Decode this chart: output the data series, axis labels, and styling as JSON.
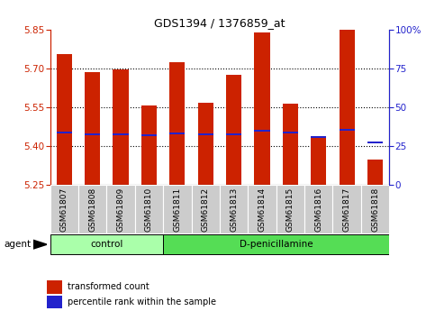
{
  "title": "GDS1394 / 1376859_at",
  "samples": [
    "GSM61807",
    "GSM61808",
    "GSM61809",
    "GSM61810",
    "GSM61811",
    "GSM61812",
    "GSM61813",
    "GSM61814",
    "GSM61815",
    "GSM61816",
    "GSM61817",
    "GSM61818"
  ],
  "bar_values": [
    5.755,
    5.685,
    5.695,
    5.558,
    5.725,
    5.568,
    5.675,
    5.838,
    5.565,
    5.435,
    5.85,
    5.348
  ],
  "blue_values": [
    5.453,
    5.445,
    5.447,
    5.443,
    5.448,
    5.445,
    5.447,
    5.46,
    5.452,
    5.435,
    5.463,
    5.415
  ],
  "bar_bottom": 5.25,
  "ylim_left": [
    5.25,
    5.85
  ],
  "ylim_right": [
    0,
    100
  ],
  "yticks_left": [
    5.25,
    5.4,
    5.55,
    5.7,
    5.85
  ],
  "yticks_right": [
    0,
    25,
    50,
    75,
    100
  ],
  "right_tick_labels": [
    "0",
    "25",
    "50",
    "75",
    "100%"
  ],
  "bar_color": "#CC2200",
  "blue_color": "#2222CC",
  "control_samples_count": 4,
  "treatment_samples_count": 8,
  "control_label": "control",
  "treatment_label": "D-penicillamine",
  "agent_label": "agent",
  "legend_bar_label": "transformed count",
  "legend_blue_label": "percentile rank within the sample",
  "bg_color": "#FFFFFF",
  "label_cell_color": "#CCCCCC",
  "control_bg": "#AAFFAA",
  "treatment_bg": "#55DD55",
  "bar_width": 0.55
}
